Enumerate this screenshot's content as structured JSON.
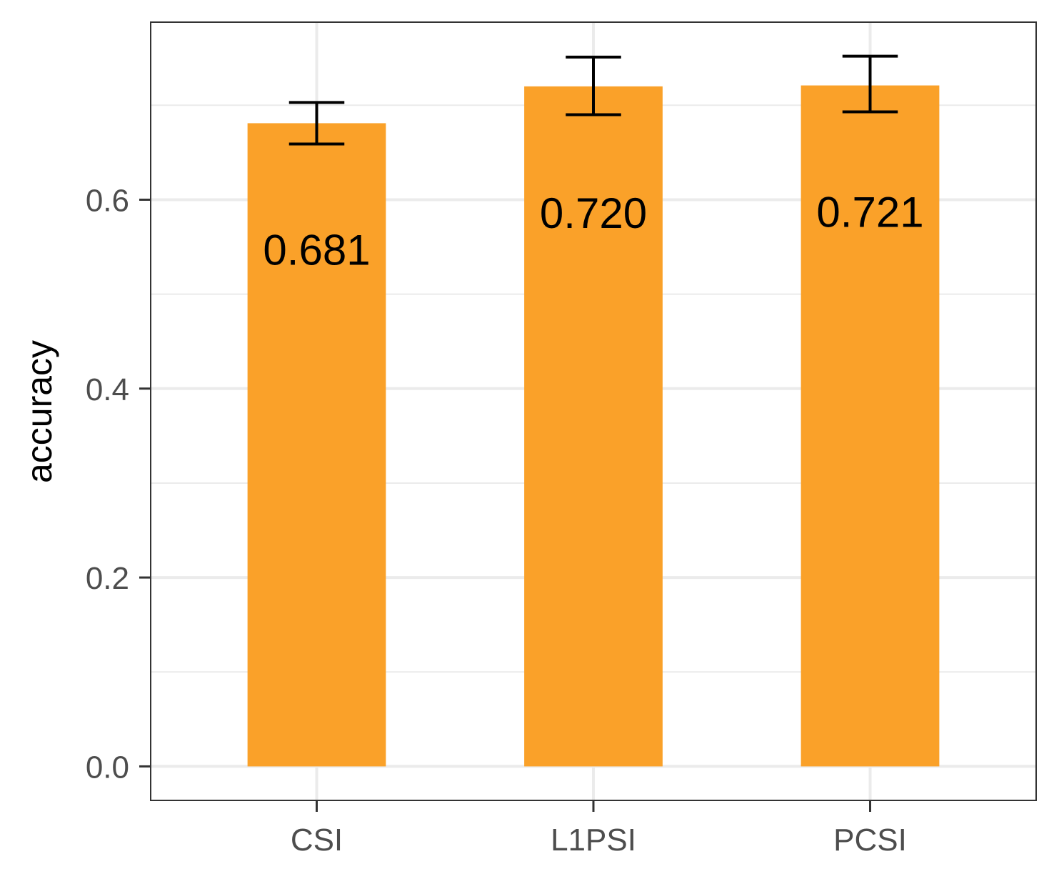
{
  "chart_data": {
    "type": "bar",
    "title": "",
    "xlabel": "",
    "ylabel": "accuracy",
    "categories": [
      "CSI",
      "L1PSI",
      "PCSI"
    ],
    "values": [
      0.681,
      0.72,
      0.721
    ],
    "value_labels": [
      "0.681",
      "0.720",
      "0.721"
    ],
    "error_bars": [
      {
        "low": 0.659,
        "high": 0.703
      },
      {
        "low": 0.69,
        "high": 0.751
      },
      {
        "low": 0.693,
        "high": 0.752
      }
    ],
    "ylim": [
      -0.036,
      0.788
    ],
    "y_ticks": [
      0.0,
      0.2,
      0.4,
      0.6
    ],
    "y_tick_labels": [
      "0.0",
      "0.2",
      "0.4",
      "0.6"
    ],
    "y_minor_ticks": [
      0.1,
      0.3,
      0.5,
      0.7
    ],
    "grid": true,
    "legend": "none",
    "colors": {
      "bar": "#FAA129",
      "error_bar": "#000000",
      "grid": "#EBEBEB",
      "panel_border": "#333333",
      "tick_text": "#4D4D4D"
    }
  }
}
